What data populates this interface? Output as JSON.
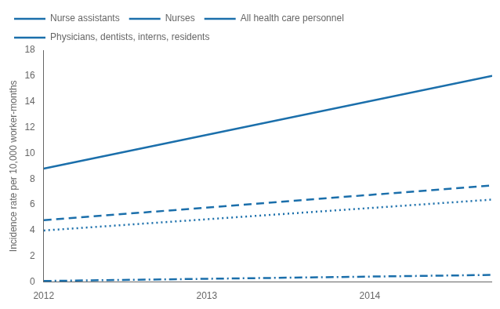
{
  "chart_data": {
    "type": "line",
    "ylabel": "Incidence rate per 10,000 worker-months",
    "color": "#1B6FAB",
    "x": [
      2012.0,
      2014.75
    ],
    "xlim": [
      2012.0,
      2014.75
    ],
    "xticks": [
      2012,
      2013,
      2014
    ],
    "ylim": [
      0,
      18
    ],
    "yticks": [
      0,
      2,
      4,
      6,
      8,
      10,
      12,
      14,
      16,
      18
    ],
    "grid": false,
    "legend": "upper left",
    "series": [
      {
        "name": "Nurse assistants",
        "line_style": "solid",
        "values": [
          8.8,
          16.0
        ]
      },
      {
        "name": "Nurses",
        "line_style": "dashed",
        "values": [
          4.8,
          7.5
        ]
      },
      {
        "name": "All health care personnel",
        "line_style": "dotted",
        "values": [
          4.0,
          6.4
        ]
      },
      {
        "name": "Physicians, dentists, interns, residents",
        "line_style": "dashdot",
        "values": [
          0.08,
          0.55
        ]
      }
    ]
  }
}
